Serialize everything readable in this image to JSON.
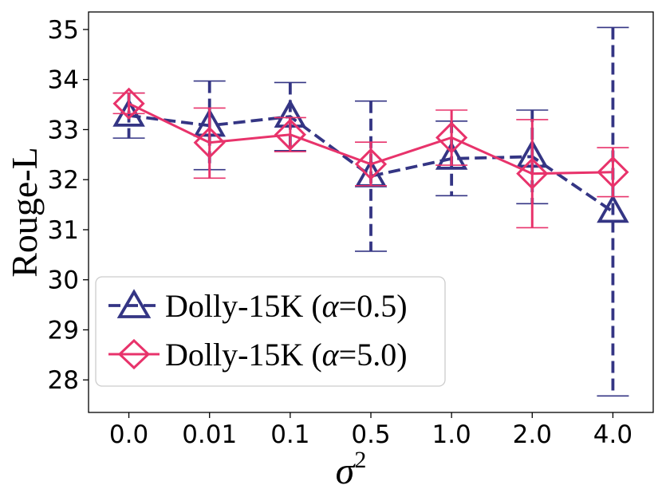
{
  "chart_data": {
    "type": "line",
    "title": "",
    "xlabel": "σ",
    "xlabel_superscript": "2",
    "ylabel": "Rouge-L",
    "categories": [
      "0.0",
      "0.01",
      "0.1",
      "0.5",
      "1.0",
      "2.0",
      "4.0"
    ],
    "y_ticks": [
      "28",
      "29",
      "30",
      "31",
      "32",
      "33",
      "34",
      "35"
    ],
    "ylim": [
      27.35,
      35.35
    ],
    "grid": false,
    "legend_position": "lower-left",
    "series": [
      {
        "name_prefix": "Dolly-15K (",
        "name_greek": "α",
        "name_suffix": "=0.5)",
        "color": "#343584",
        "line_style": "dashed",
        "marker": "triangle",
        "values": [
          33.28,
          33.08,
          33.26,
          32.07,
          32.42,
          32.46,
          31.36
        ],
        "err_low": [
          32.83,
          32.2,
          32.58,
          30.57,
          31.68,
          31.52,
          27.68
        ],
        "err_high": [
          33.73,
          33.97,
          33.94,
          33.57,
          33.17,
          33.39,
          35.04
        ]
      },
      {
        "name_prefix": "Dolly-15K (",
        "name_greek": "α",
        "name_suffix": "=5.0)",
        "color": "#e8336b",
        "line_style": "solid",
        "marker": "diamond",
        "values": [
          33.52,
          32.74,
          32.9,
          32.31,
          32.84,
          32.12,
          32.15
        ],
        "err_low": [
          33.32,
          32.03,
          32.56,
          31.88,
          32.29,
          31.04,
          31.66
        ],
        "err_high": [
          33.73,
          33.43,
          33.24,
          32.75,
          33.39,
          33.2,
          32.64
        ]
      }
    ]
  }
}
